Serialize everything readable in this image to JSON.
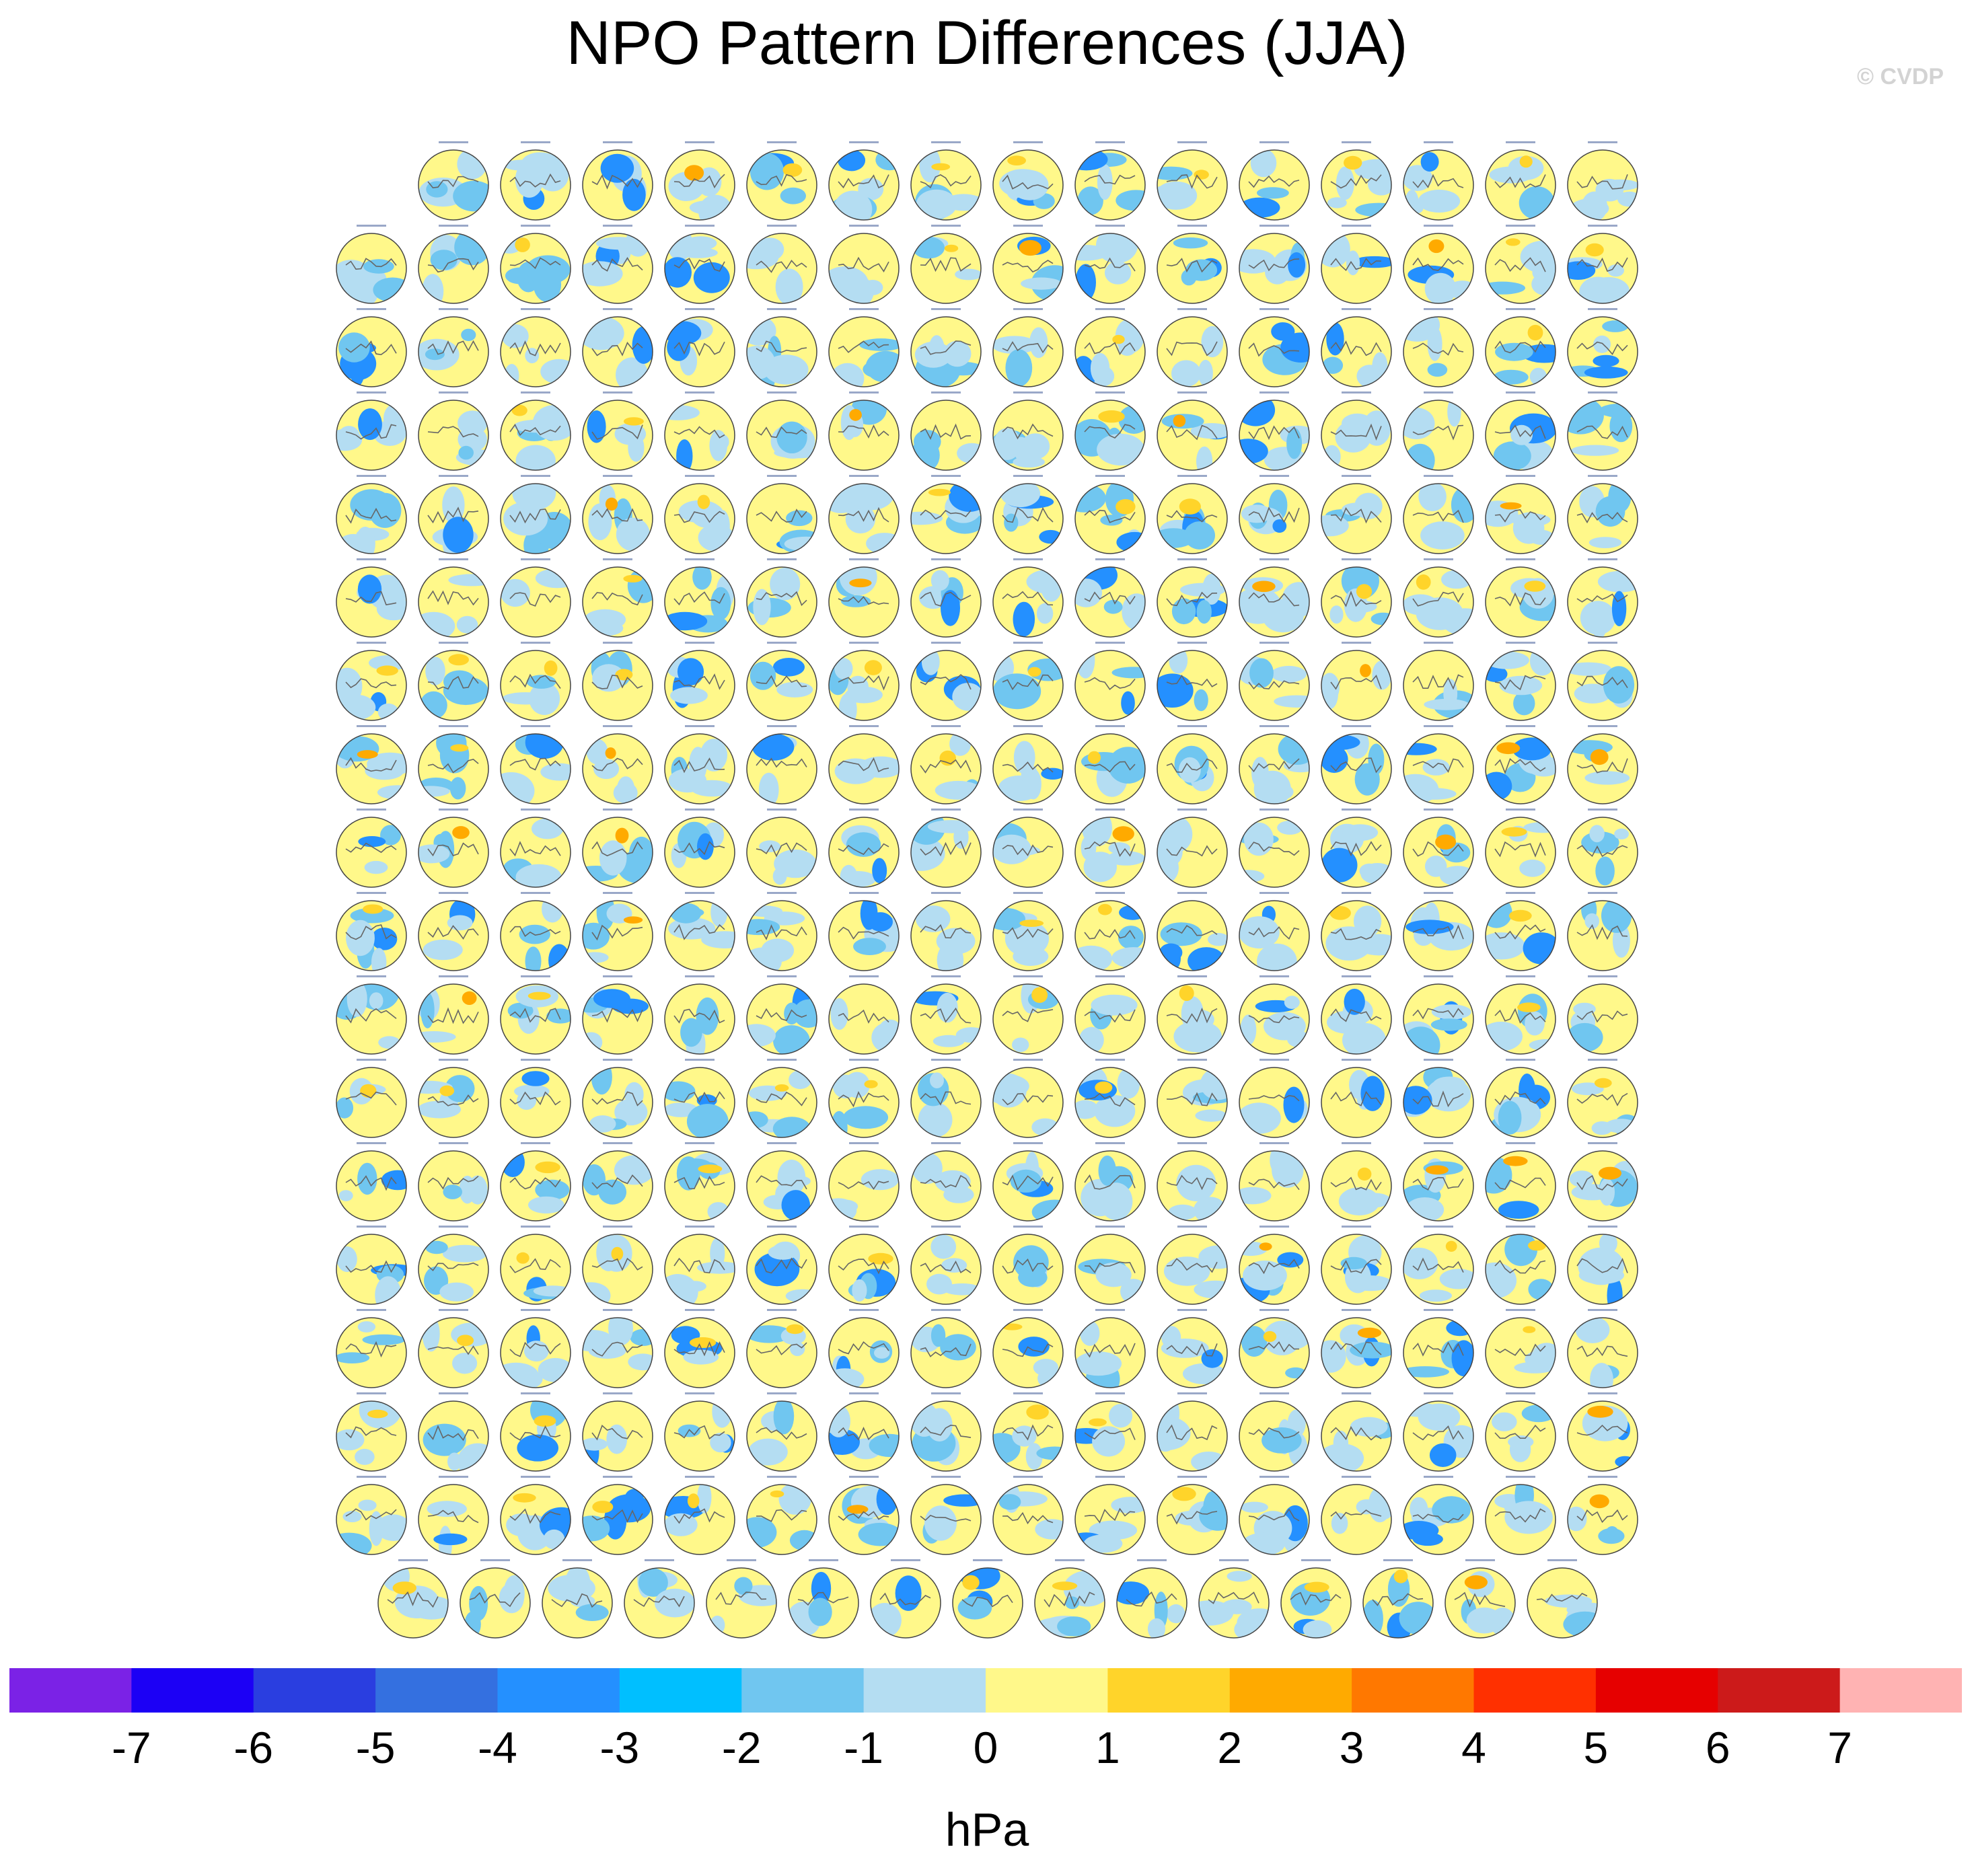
{
  "title": "NPO Pattern Differences (JJA)",
  "watermark": "© CVDP",
  "chart_data": {
    "type": "panel-map-grid",
    "title": "NPO Pattern Differences (JJA)",
    "projection": "polar stereographic (Northern Hemisphere)",
    "panel_rows": [
      15,
      16,
      16,
      16,
      16,
      16,
      16,
      16,
      16,
      16,
      16,
      16,
      16,
      16,
      16,
      16,
      16,
      15
    ],
    "total_panels": 286,
    "colorbar": {
      "units": "hPa",
      "tick_labels": [
        "-7",
        "-6",
        "-5",
        "-4",
        "-3",
        "-2",
        "-1",
        "0",
        "1",
        "2",
        "3",
        "4",
        "5",
        "6",
        "7"
      ],
      "levels": [
        -7,
        -6,
        -5,
        -4,
        -3,
        -2,
        -1,
        0,
        1,
        2,
        3,
        4,
        5,
        6,
        7
      ],
      "colors": [
        "#7b22e6",
        "#1c00f5",
        "#2a3ee0",
        "#3470e0",
        "#2490ff",
        "#00bfff",
        "#70c6f0",
        "#b4ddf2",
        "#fff88a",
        "#ffd42a",
        "#ffaa00",
        "#ff7800",
        "#ff3000",
        "#e60000",
        "#cc1a1a",
        "#ffb3b3"
      ]
    }
  }
}
